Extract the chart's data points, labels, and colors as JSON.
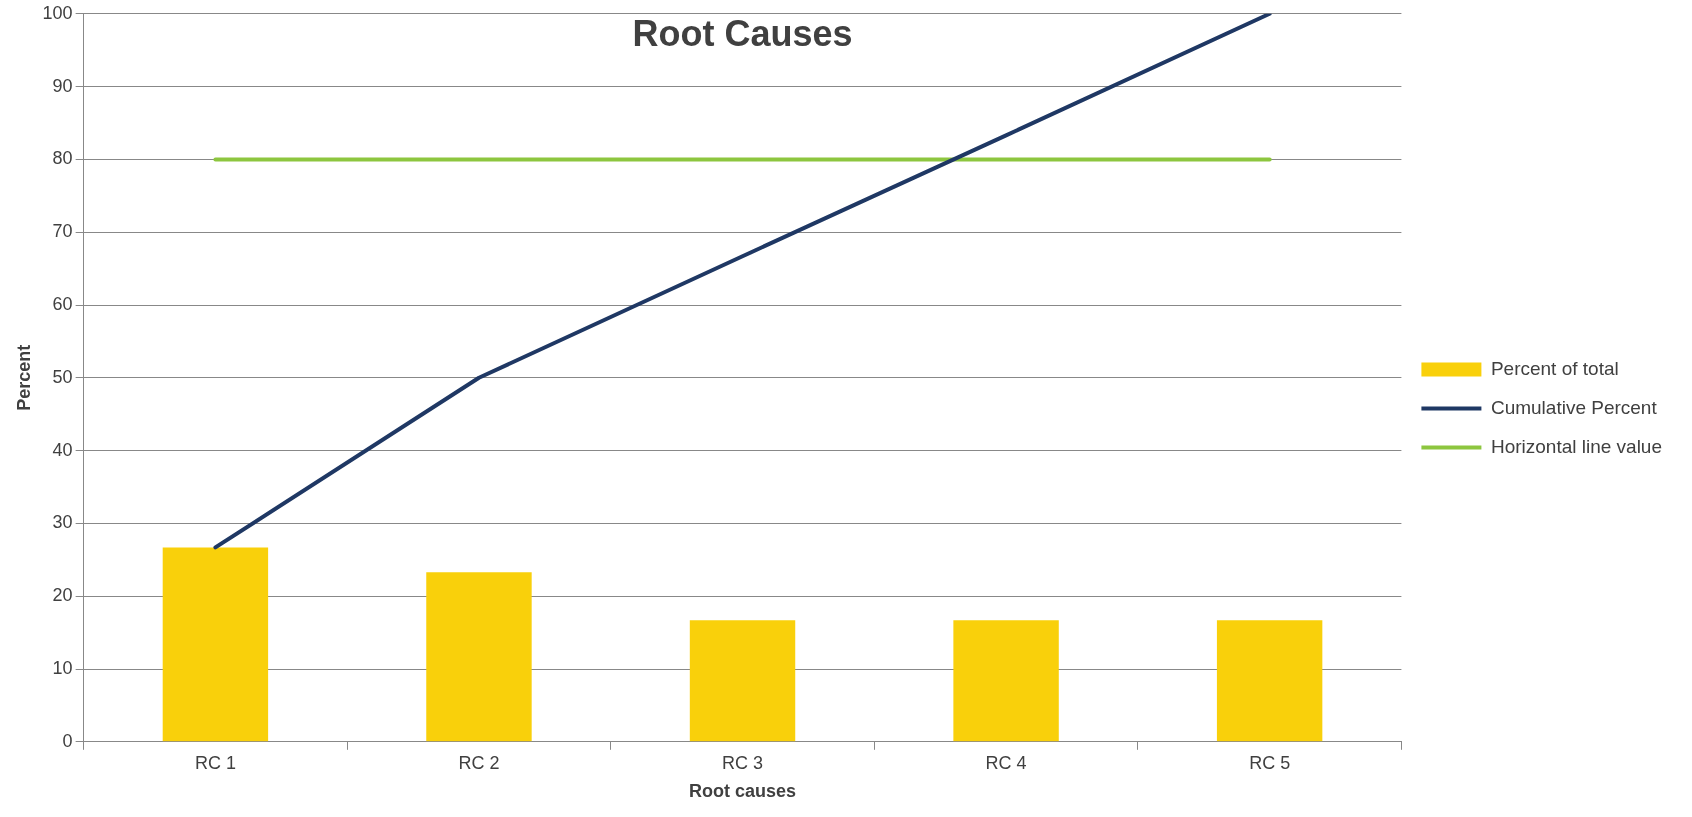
{
  "chart_data": {
    "type": "bar",
    "title": "Root Causes",
    "xlabel": "Root causes",
    "ylabel": "Percent",
    "categories": [
      "RC 1",
      "RC 2",
      "RC 3",
      "RC 4",
      "RC 5"
    ],
    "series": [
      {
        "name": "Percent of total",
        "type": "bar",
        "color": "#f9d00b",
        "values": [
          26.7,
          23.3,
          16.7,
          16.7,
          16.7
        ]
      },
      {
        "name": "Cumulative Percent",
        "type": "line",
        "color": "#1f3864",
        "values": [
          26.7,
          50,
          66.7,
          83.3,
          100
        ]
      },
      {
        "name": "Horizontal line value",
        "type": "line",
        "color": "#8dc63f",
        "values": [
          80,
          80,
          80,
          80,
          80
        ]
      }
    ],
    "ylim": [
      0,
      100
    ],
    "yticks": [
      0,
      10,
      20,
      30,
      40,
      50,
      60,
      70,
      80,
      90,
      100
    ],
    "grid": "y",
    "legend": "right",
    "marker": "none",
    "line_style": "solid"
  }
}
